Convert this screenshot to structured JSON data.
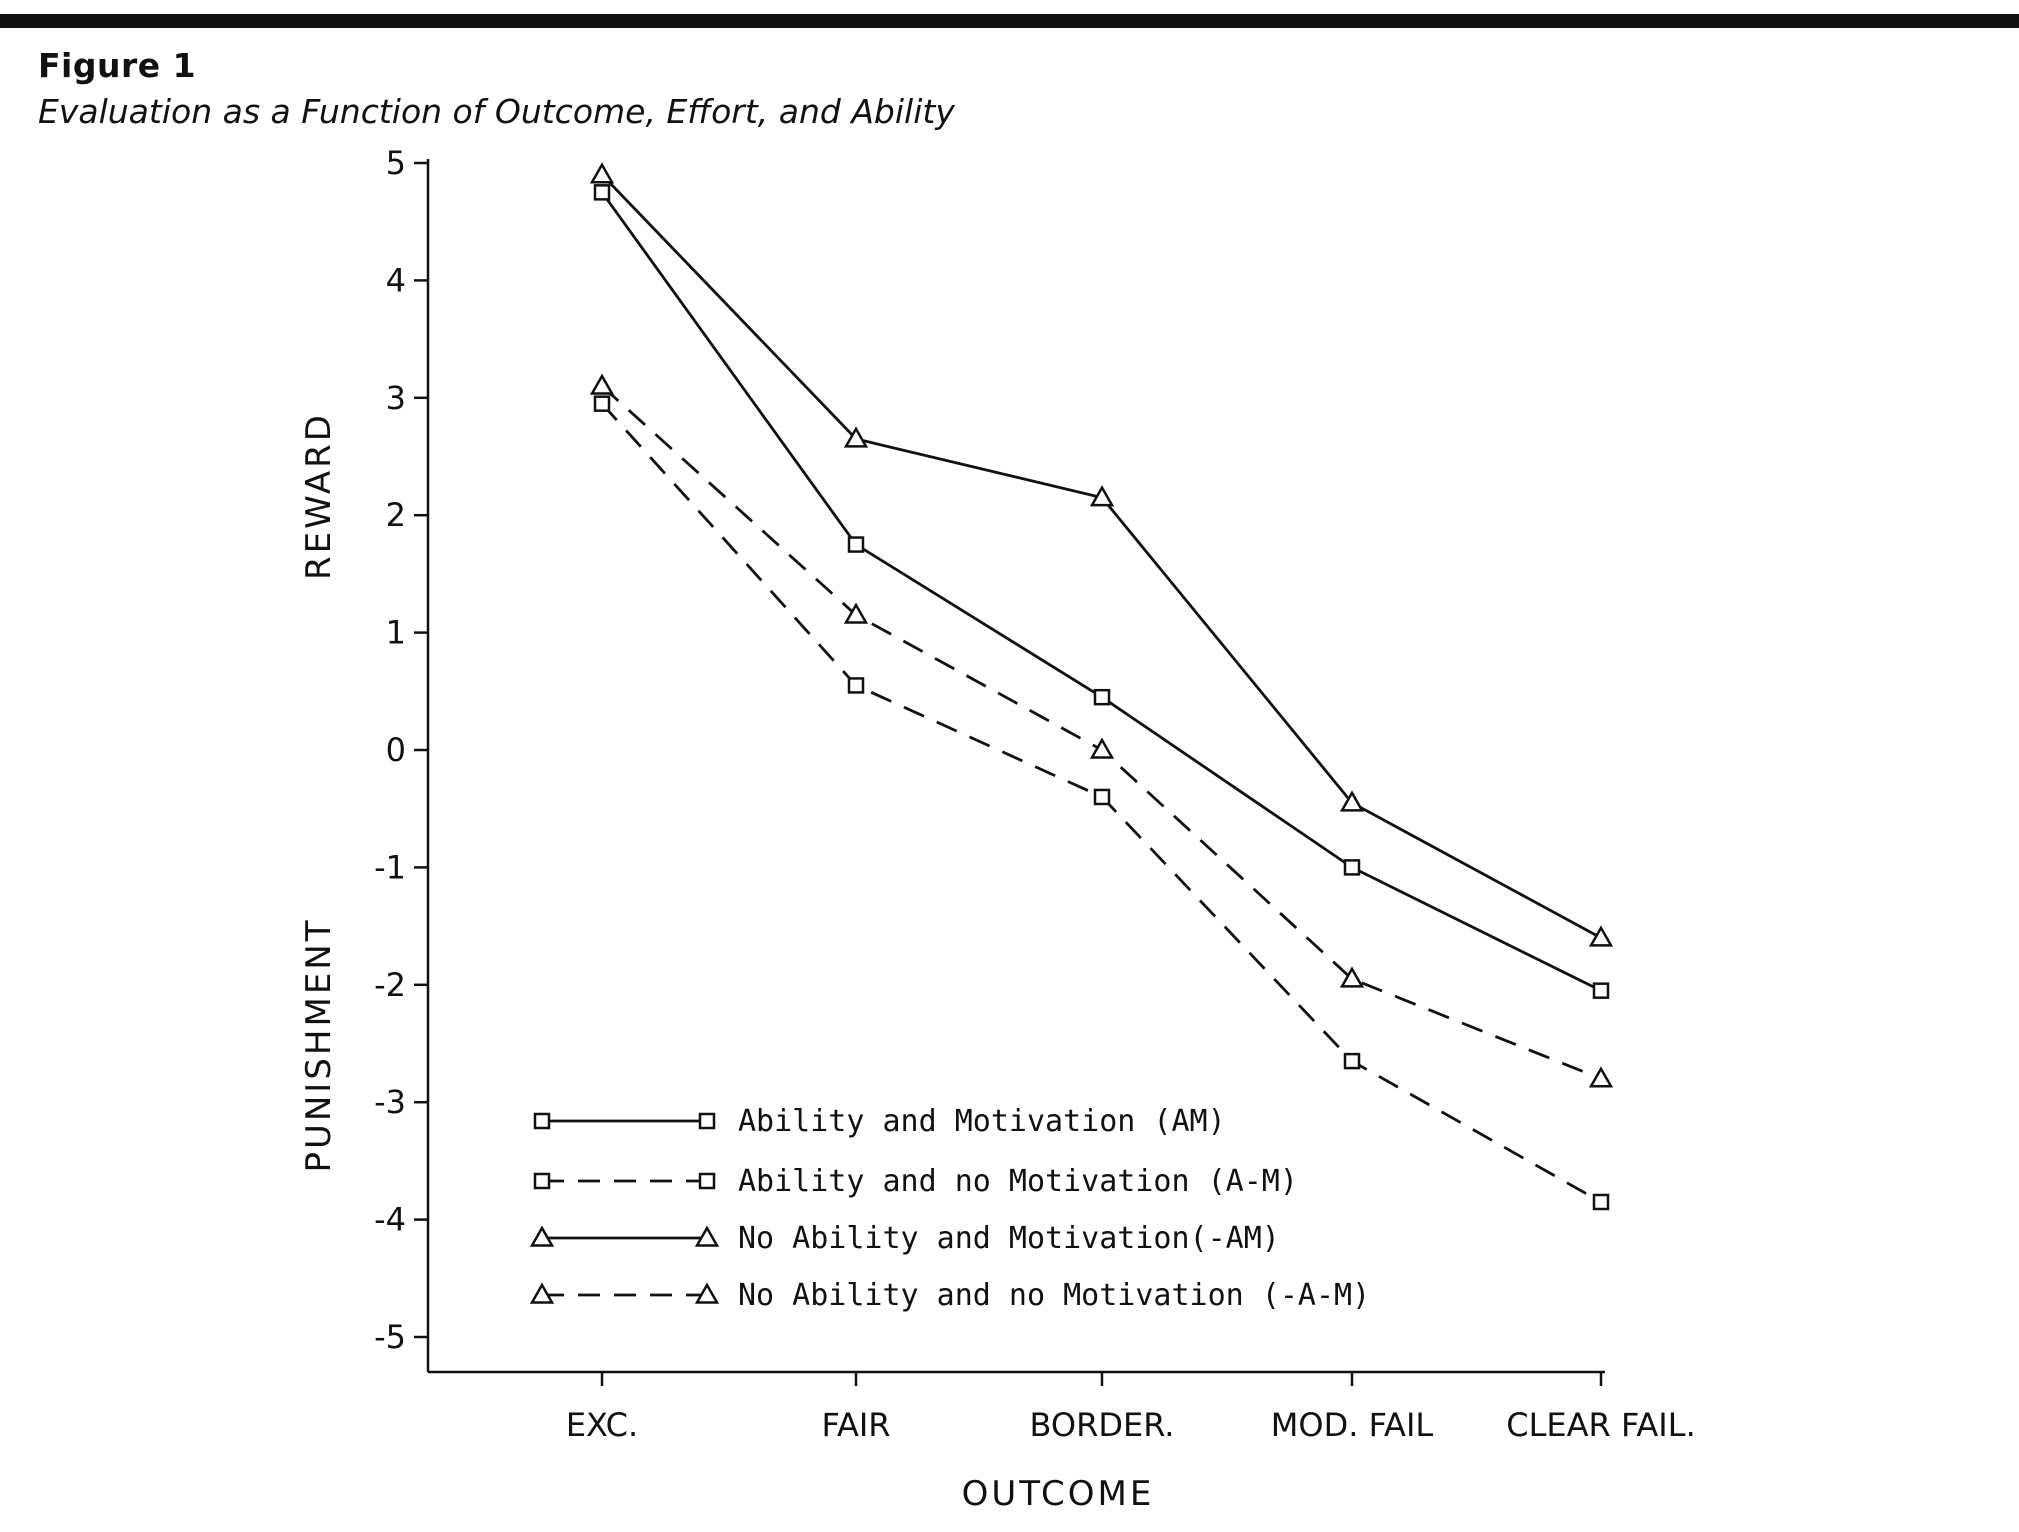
{
  "figure": {
    "label": "Figure 1",
    "caption": "Evaluation as a Function of Outcome, Effort, and Ability"
  },
  "chart_data": {
    "type": "line",
    "categories": [
      "EXC.",
      "FAIR",
      "BORDER.",
      "MOD. FAIL",
      "CLEAR FAIL."
    ],
    "xlabel": "OUTCOME",
    "ylabel_top": "REWARD",
    "ylabel_bottom": "PUNISHMENT",
    "ylim": [
      -5,
      5
    ],
    "yticks": [
      5,
      4,
      3,
      2,
      1,
      0,
      -1,
      -2,
      -3,
      -4,
      -5
    ],
    "legend_position": "bottom-left",
    "grid": false,
    "series": [
      {
        "name": "Ability and Motivation (AM)",
        "marker": "square",
        "line": "solid",
        "values": [
          4.75,
          1.75,
          0.45,
          -1.0,
          -2.05
        ]
      },
      {
        "name": "Ability and no Motivation (A-M)",
        "marker": "square",
        "line": "dashed",
        "values": [
          2.95,
          0.55,
          -0.4,
          -2.65,
          -3.85
        ]
      },
      {
        "name": "No Ability and Motivation(-AM)",
        "marker": "triangle",
        "line": "solid",
        "values": [
          4.9,
          2.65,
          2.15,
          -0.45,
          -1.6
        ]
      },
      {
        "name": "No Ability and no Motivation (-A-M)",
        "marker": "triangle",
        "line": "dashed",
        "values": [
          3.1,
          1.15,
          0.0,
          -1.95,
          -2.8
        ]
      }
    ]
  }
}
